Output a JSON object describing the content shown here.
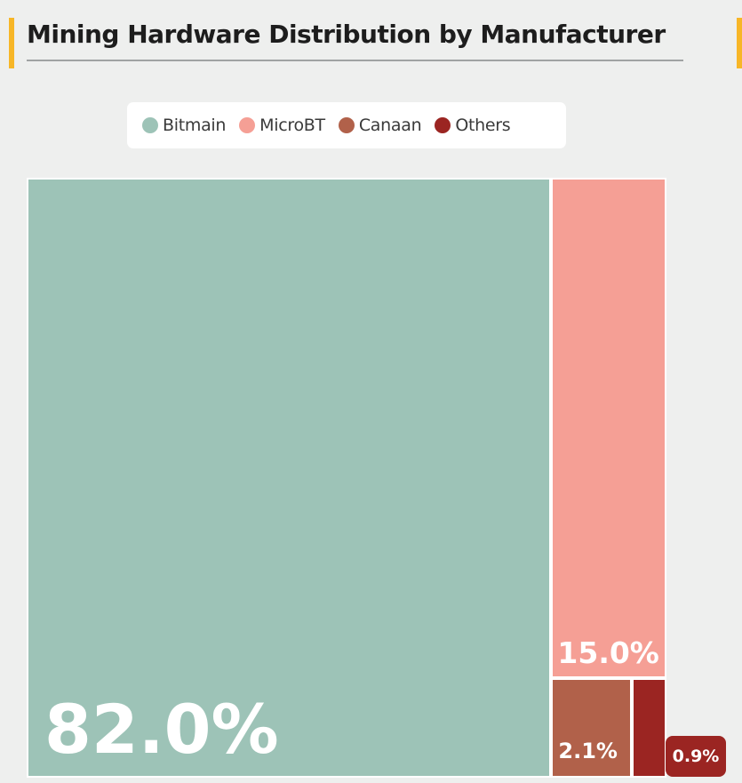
{
  "title": "Mining Hardware Distribution by Manufacturer",
  "colors": {
    "accent": "#f7b627",
    "bitmain": "#9dc3b7",
    "microbt": "#f59f95",
    "canaan": "#b1614a",
    "others": "#9b2522"
  },
  "chart_data": {
    "type": "treemap",
    "title": "Mining Hardware Distribution by Manufacturer",
    "legend_position": "top",
    "unit": "%",
    "categories": [
      "Bitmain",
      "MicroBT",
      "Canaan",
      "Others"
    ],
    "values": [
      82.0,
      15.0,
      2.1,
      0.9
    ],
    "labels": [
      "82.0%",
      "15.0%",
      "2.1%",
      "0.9%"
    ]
  }
}
